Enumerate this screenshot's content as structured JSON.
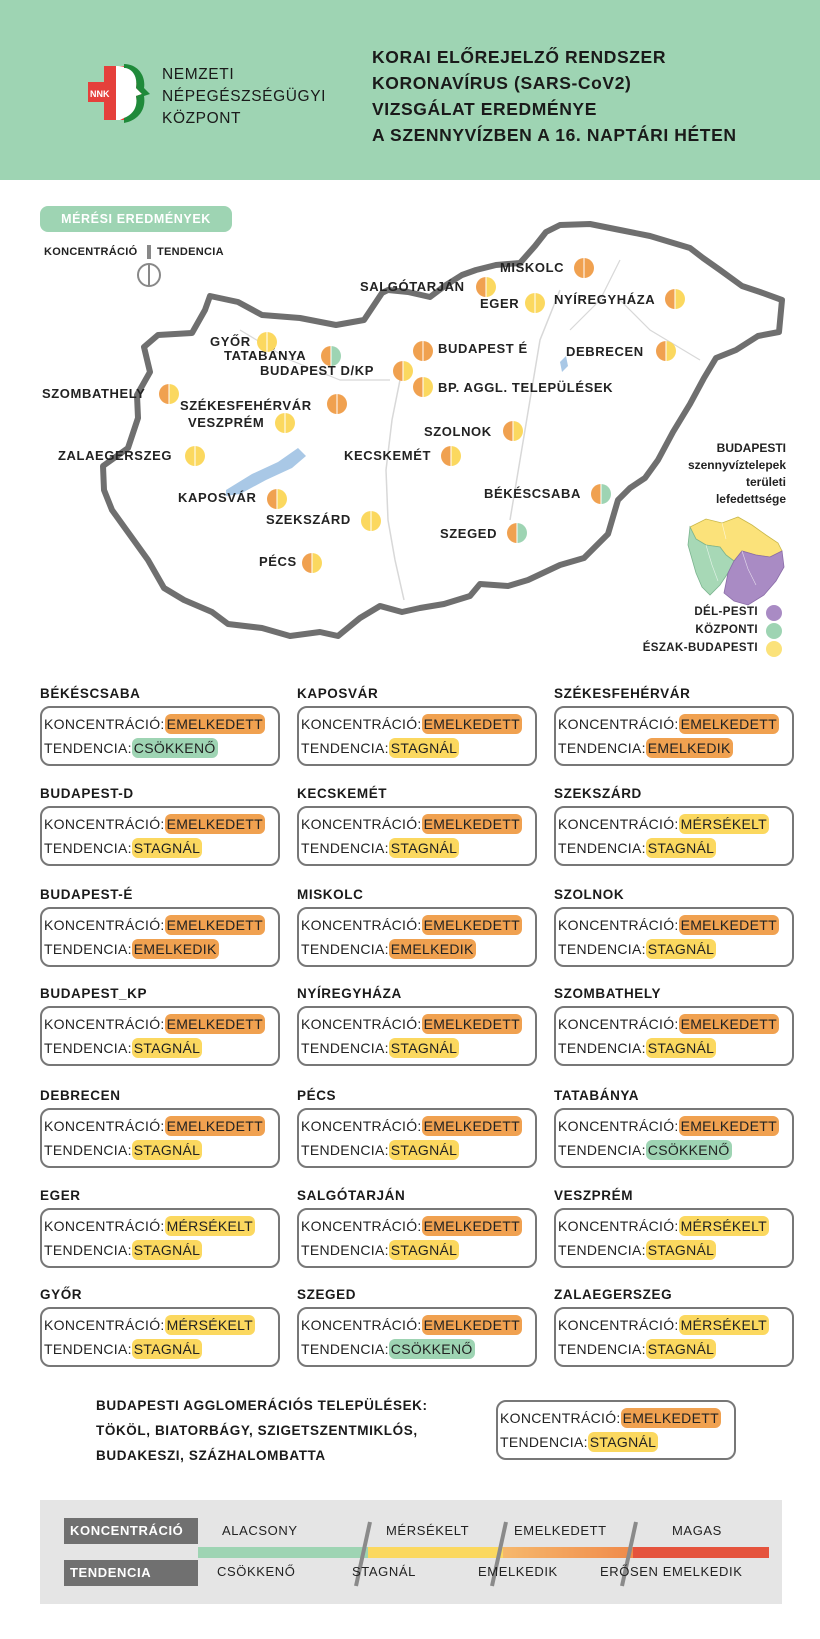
{
  "header": {
    "org": [
      "NEMZETI",
      "NÉPEGÉSZSÉGÜGYI",
      "KÖZPONT"
    ],
    "logo_text": "NNK",
    "title": [
      "KORAI ELŐREJELZŐ RENDSZER",
      "KORONAVÍRUS (SARS-CoV2)",
      "VIZSGÁLAT EREDMÉNYE",
      "A SZENNYVÍZBEN A 16. NAPTÁRI HÉTEN"
    ]
  },
  "map_section": {
    "pill": "MÉRÉSI EREDMÉNYEK",
    "legend_concentration": "KONCENTRÁCIÓ",
    "legend_trend": "TENDENCIA",
    "cities": [
      {
        "name": "MISKOLC",
        "left": "orange",
        "right": "orange"
      },
      {
        "name": "SALGÓTARJÁN",
        "left": "orange",
        "right": "yellow"
      },
      {
        "name": "EGER",
        "left": "yellow",
        "right": "yellow"
      },
      {
        "name": "NYÍREGYHÁZA",
        "left": "orange",
        "right": "yellow"
      },
      {
        "name": "GYŐR",
        "left": "yellow",
        "right": "yellow"
      },
      {
        "name": "TATABÁNYA",
        "left": "orange",
        "right": "green"
      },
      {
        "name": "BUDAPEST É",
        "left": "orange",
        "right": "orange"
      },
      {
        "name": "BUDAPEST D/KP",
        "left": "orange",
        "right": "yellow"
      },
      {
        "name": "DEBRECEN",
        "left": "orange",
        "right": "yellow"
      },
      {
        "name": "BP. AGGL. TELEPÜLÉSEK",
        "left": "orange",
        "right": "yellow"
      },
      {
        "name": "SZOMBATHELY",
        "left": "orange",
        "right": "yellow"
      },
      {
        "name": "SZÉKESFEHÉRVÁR",
        "left": "orange",
        "right": "orange"
      },
      {
        "name": "VESZPRÉM",
        "left": "yellow",
        "right": "yellow"
      },
      {
        "name": "SZOLNOK",
        "left": "orange",
        "right": "yellow"
      },
      {
        "name": "ZALAEGERSZEG",
        "left": "yellow",
        "right": "yellow"
      },
      {
        "name": "KECSKEMÉT",
        "left": "orange",
        "right": "yellow"
      },
      {
        "name": "BÉKÉSCSABA",
        "left": "orange",
        "right": "green"
      },
      {
        "name": "KAPOSVÁR",
        "left": "orange",
        "right": "yellow"
      },
      {
        "name": "SZEKSZÁRD",
        "left": "yellow",
        "right": "yellow"
      },
      {
        "name": "SZEGED",
        "left": "orange",
        "right": "green"
      },
      {
        "name": "PÉCS",
        "left": "orange",
        "right": "yellow"
      }
    ],
    "bp_coverage_title": [
      "BUDAPESTI",
      "szennyvíztelepek",
      "területi",
      "lefedettsége"
    ],
    "bp_legend": [
      "DÉL-PESTI",
      "KÖZPONTI",
      "ÉSZAK-BUDAPESTI"
    ]
  },
  "labels": {
    "concentration": "KONCENTRÁCIÓ:",
    "trend": "TENDENCIA:"
  },
  "cards": [
    {
      "name": "BÉKÉSCSABA",
      "conc": "EMELKEDETT",
      "conc_color": "orange",
      "trend": "CSÖKKENŐ",
      "trend_color": "green"
    },
    {
      "name": "KAPOSVÁR",
      "conc": "EMELKEDETT",
      "conc_color": "orange",
      "trend": "STAGNÁL",
      "trend_color": "yellow"
    },
    {
      "name": "SZÉKESFEHÉRVÁR",
      "conc": "EMELKEDETT",
      "conc_color": "orange",
      "trend": "EMELKEDIK",
      "trend_color": "orange"
    },
    {
      "name": "BUDAPEST-D",
      "conc": "EMELKEDETT",
      "conc_color": "orange",
      "trend": "STAGNÁL",
      "trend_color": "yellow"
    },
    {
      "name": "KECSKEMÉT",
      "conc": "EMELKEDETT",
      "conc_color": "orange",
      "trend": "STAGNÁL",
      "trend_color": "yellow"
    },
    {
      "name": "SZEKSZÁRD",
      "conc": "MÉRSÉKELT",
      "conc_color": "yellow",
      "trend": "STAGNÁL",
      "trend_color": "yellow"
    },
    {
      "name": "BUDAPEST-É",
      "conc": "EMELKEDETT",
      "conc_color": "orange",
      "trend": "EMELKEDIK",
      "trend_color": "orange"
    },
    {
      "name": "MISKOLC",
      "conc": "EMELKEDETT",
      "conc_color": "orange",
      "trend": "EMELKEDIK",
      "trend_color": "orange"
    },
    {
      "name": "SZOLNOK",
      "conc": "EMELKEDETT",
      "conc_color": "orange",
      "trend": "STAGNÁL",
      "trend_color": "yellow"
    },
    {
      "name": "BUDAPEST_KP",
      "conc": "EMELKEDETT",
      "conc_color": "orange",
      "trend": "STAGNÁL",
      "trend_color": "yellow"
    },
    {
      "name": "NYÍREGYHÁZA",
      "conc": "EMELKEDETT",
      "conc_color": "orange",
      "trend": "STAGNÁL",
      "trend_color": "yellow"
    },
    {
      "name": "SZOMBATHELY",
      "conc": "EMELKEDETT",
      "conc_color": "orange",
      "trend": "STAGNÁL",
      "trend_color": "yellow"
    },
    {
      "name": "DEBRECEN",
      "conc": "EMELKEDETT",
      "conc_color": "orange",
      "trend": "STAGNÁL",
      "trend_color": "yellow"
    },
    {
      "name": "PÉCS",
      "conc": "EMELKEDETT",
      "conc_color": "orange",
      "trend": "STAGNÁL",
      "trend_color": "yellow"
    },
    {
      "name": "TATABÁNYA",
      "conc": "EMELKEDETT",
      "conc_color": "orange",
      "trend": "CSÖKKENŐ",
      "trend_color": "green"
    },
    {
      "name": "EGER",
      "conc": "MÉRSÉKELT",
      "conc_color": "yellow",
      "trend": "STAGNÁL",
      "trend_color": "yellow"
    },
    {
      "name": "SALGÓTARJÁN",
      "conc": "EMELKEDETT",
      "conc_color": "orange",
      "trend": "STAGNÁL",
      "trend_color": "yellow"
    },
    {
      "name": "VESZPRÉM",
      "conc": "MÉRSÉKELT",
      "conc_color": "yellow",
      "trend": "STAGNÁL",
      "trend_color": "yellow"
    },
    {
      "name": "GYŐR",
      "conc": "MÉRSÉKELT",
      "conc_color": "yellow",
      "trend": "STAGNÁL",
      "trend_color": "yellow"
    },
    {
      "name": "SZEGED",
      "conc": "EMELKEDETT",
      "conc_color": "orange",
      "trend": "CSÖKKENŐ",
      "trend_color": "green"
    },
    {
      "name": "ZALAEGERSZEG",
      "conc": "MÉRSÉKELT",
      "conc_color": "yellow",
      "trend": "STAGNÁL",
      "trend_color": "yellow"
    }
  ],
  "agglomeration": {
    "lines": [
      "BUDAPESTI AGGLOMERÁCIÓS TELEPÜLÉSEK:",
      "TÖKÖL, BIATORBÁGY, SZIGETSZENTMIKLÓS,",
      "BUDAKESZI, SZÁZHALOMBATTA"
    ],
    "conc": "EMELKEDETT",
    "conc_color": "orange",
    "trend": "STAGNÁL",
    "trend_color": "yellow"
  },
  "scale": {
    "concentration_label": "KONCENTRÁCIÓ",
    "trend_label": "TENDENCIA",
    "concentration_levels": [
      "ALACSONY",
      "MÉRSÉKELT",
      "EMELKEDETT",
      "MAGAS"
    ],
    "trend_levels": [
      "CSÖKKENŐ",
      "STAGNÁL",
      "EMELKEDIK",
      "ERŐSEN EMELKEDIK"
    ],
    "colors": [
      "#9ed4b3",
      "#fbd85f",
      "#f0a150",
      "#e5533d"
    ]
  },
  "palette": {
    "orange": "#f0a150",
    "yellow": "#fbd85f",
    "green": "#9ed4b3",
    "header_bg": "#9ed4b3",
    "purple": "#a98bc4"
  }
}
